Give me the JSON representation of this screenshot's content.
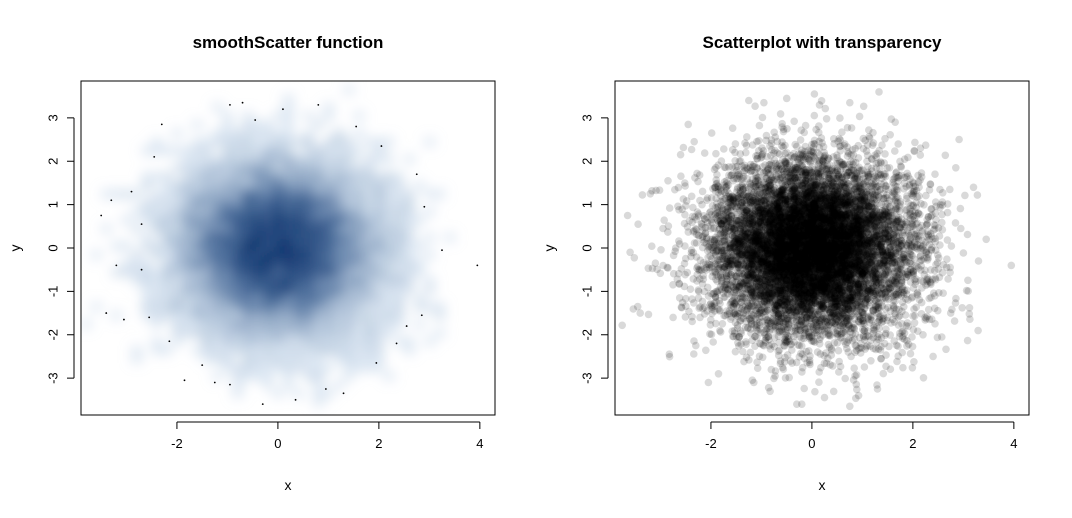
{
  "chart_data": [
    {
      "type": "heatmap",
      "title": "smoothScatter function",
      "xlabel": "x",
      "ylabel": "y",
      "xlim": [
        -3.9,
        4.3
      ],
      "ylim": [
        -3.85,
        3.85
      ],
      "xticks": [
        -2,
        0,
        2,
        4
      ],
      "yticks": [
        -3,
        -2,
        -1,
        0,
        1,
        2,
        3
      ],
      "x_tick_labels": [
        "-2",
        "0",
        "2",
        "4"
      ],
      "y_tick_labels": [
        "-3",
        "-2",
        "-1",
        "0",
        "1",
        "2",
        "3"
      ],
      "grid": false,
      "color": "#08306b",
      "color_light": "#c6dbef",
      "n_points": 10000,
      "distribution": "bivariate standard normal",
      "outlier_points": [
        {
          "x": -3.5,
          "y": 0.75
        },
        {
          "x": -3.3,
          "y": 1.1
        },
        {
          "x": -3.2,
          "y": -0.4
        },
        {
          "x": -3.4,
          "y": -1.5
        },
        {
          "x": -3.05,
          "y": -1.65
        },
        {
          "x": -2.9,
          "y": 1.3
        },
        {
          "x": -2.7,
          "y": 0.55
        },
        {
          "x": -2.7,
          "y": -0.5
        },
        {
          "x": -2.55,
          "y": -1.6
        },
        {
          "x": -2.45,
          "y": 2.1
        },
        {
          "x": -2.3,
          "y": 2.85
        },
        {
          "x": -2.15,
          "y": -2.15
        },
        {
          "x": -1.85,
          "y": -3.05
        },
        {
          "x": -1.5,
          "y": -2.7
        },
        {
          "x": -1.25,
          "y": -3.1
        },
        {
          "x": -0.95,
          "y": 3.3
        },
        {
          "x": -0.7,
          "y": 3.35
        },
        {
          "x": -0.45,
          "y": 2.95
        },
        {
          "x": 0.1,
          "y": 3.2
        },
        {
          "x": 0.35,
          "y": -3.5
        },
        {
          "x": 0.8,
          "y": 3.3
        },
        {
          "x": 0.95,
          "y": -3.25
        },
        {
          "x": 1.3,
          "y": -3.35
        },
        {
          "x": 1.55,
          "y": 2.8
        },
        {
          "x": 1.95,
          "y": -2.65
        },
        {
          "x": 2.05,
          "y": 2.35
        },
        {
          "x": 2.35,
          "y": -2.2
        },
        {
          "x": 2.55,
          "y": -1.8
        },
        {
          "x": 2.75,
          "y": 1.7
        },
        {
          "x": 2.85,
          "y": -1.55
        },
        {
          "x": 2.9,
          "y": 0.95
        },
        {
          "x": 3.25,
          "y": -0.05
        },
        {
          "x": 3.95,
          "y": -0.4
        },
        {
          "x": -0.3,
          "y": -3.6
        },
        {
          "x": -0.95,
          "y": -3.15
        }
      ]
    },
    {
      "type": "scatter",
      "title": "Scatterplot with transparency",
      "xlabel": "x",
      "ylabel": "y",
      "xlim": [
        -3.9,
        4.3
      ],
      "ylim": [
        -3.85,
        3.85
      ],
      "xticks": [
        -2,
        0,
        2,
        4
      ],
      "yticks": [
        -3,
        -2,
        -1,
        0,
        1,
        2,
        3
      ],
      "x_tick_labels": [
        "-2",
        "0",
        "2",
        "4"
      ],
      "y_tick_labels": [
        "-3",
        "-2",
        "-1",
        "0",
        "1",
        "2",
        "3"
      ],
      "grid": false,
      "color": "#000000",
      "point_alpha": 0.15,
      "n_points": 10000,
      "distribution": "bivariate standard normal",
      "outlier_points": [
        {
          "x": -3.65,
          "y": 0.75
        },
        {
          "x": -3.6,
          "y": -0.1
        },
        {
          "x": -3.45,
          "y": -1.35
        },
        {
          "x": -3.4,
          "y": -1.5
        },
        {
          "x": -3.2,
          "y": 1.25
        },
        {
          "x": -3.1,
          "y": -0.35
        },
        {
          "x": -2.95,
          "y": 0.45
        },
        {
          "x": -2.85,
          "y": 1.55
        },
        {
          "x": -2.75,
          "y": -1.6
        },
        {
          "x": -2.6,
          "y": 2.15
        },
        {
          "x": -2.45,
          "y": 2.85
        },
        {
          "x": -2.3,
          "y": -2.25
        },
        {
          "x": -2.05,
          "y": -3.1
        },
        {
          "x": -1.85,
          "y": -2.9
        },
        {
          "x": -1.25,
          "y": 3.4
        },
        {
          "x": -1.15,
          "y": -3.1
        },
        {
          "x": -0.95,
          "y": 3.35
        },
        {
          "x": -0.5,
          "y": 3.45
        },
        {
          "x": -0.3,
          "y": -3.6
        },
        {
          "x": -0.2,
          "y": -3.6
        },
        {
          "x": 0.05,
          "y": 3.55
        },
        {
          "x": 0.15,
          "y": 3.3
        },
        {
          "x": 0.25,
          "y": -3.45
        },
        {
          "x": 0.75,
          "y": -3.65
        },
        {
          "x": 0.75,
          "y": 3.35
        },
        {
          "x": 1.3,
          "y": -3.25
        },
        {
          "x": 1.65,
          "y": 2.9
        },
        {
          "x": 2.15,
          "y": 2.3
        },
        {
          "x": 2.4,
          "y": -2.5
        },
        {
          "x": 2.75,
          "y": -1.5
        },
        {
          "x": 2.95,
          "y": 0.45
        },
        {
          "x": 3.2,
          "y": 1.4
        },
        {
          "x": 3.3,
          "y": -0.3
        },
        {
          "x": 3.95,
          "y": -0.4
        },
        {
          "x": 2.85,
          "y": 1.85
        }
      ]
    }
  ]
}
